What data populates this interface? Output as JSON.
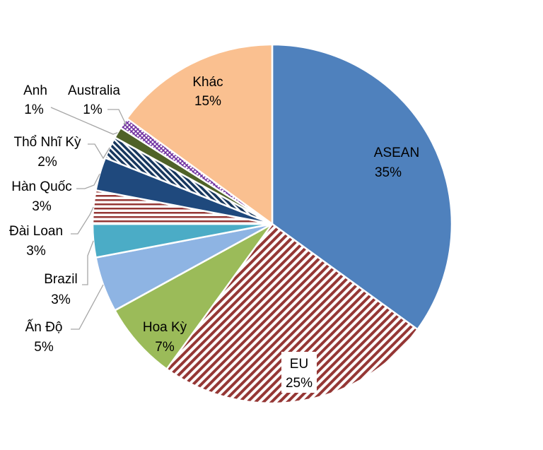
{
  "chart_data": {
    "type": "pie",
    "title": "",
    "slices": [
      {
        "label": "ASEAN",
        "value": 35,
        "value_text": "35%",
        "color": "#4f81bd",
        "pattern": "solid"
      },
      {
        "label": "EU",
        "value": 25,
        "value_text": "25%",
        "color": "#953735",
        "pattern": "diagonal-stripes"
      },
      {
        "label": "Hoa Kỳ",
        "value": 7,
        "value_text": "7%",
        "color": "#9bbb59",
        "pattern": "solid"
      },
      {
        "label": "Ấn Độ",
        "value": 5,
        "value_text": "5%",
        "color": "#8eb4e3",
        "pattern": "solid"
      },
      {
        "label": "Brazil",
        "value": 3,
        "value_text": "3%",
        "color": "#4bacc6",
        "pattern": "solid"
      },
      {
        "label": "Đài Loan",
        "value": 3,
        "value_text": "3%",
        "color": "#953735",
        "pattern": "horizontal-stripes"
      },
      {
        "label": "Hàn Quốc",
        "value": 3,
        "value_text": "3%",
        "color": "#1f497d",
        "pattern": "solid"
      },
      {
        "label": "Thổ Nhĩ Kỳ",
        "value": 2,
        "value_text": "2%",
        "color": "#17375e",
        "pattern": "diagonal-stripes"
      },
      {
        "label": "Anh",
        "value": 1,
        "value_text": "1%",
        "color": "#4f6228",
        "pattern": "solid"
      },
      {
        "label": "Australia",
        "value": 1,
        "value_text": "1%",
        "color": "#7030a0",
        "pattern": "crosshatch"
      },
      {
        "label": "Khác",
        "value": 15,
        "value_text": "15%",
        "color": "#fac090",
        "pattern": "solid"
      }
    ],
    "legend": "none",
    "start_angle": "12 o'clock",
    "direction": "clockwise"
  }
}
